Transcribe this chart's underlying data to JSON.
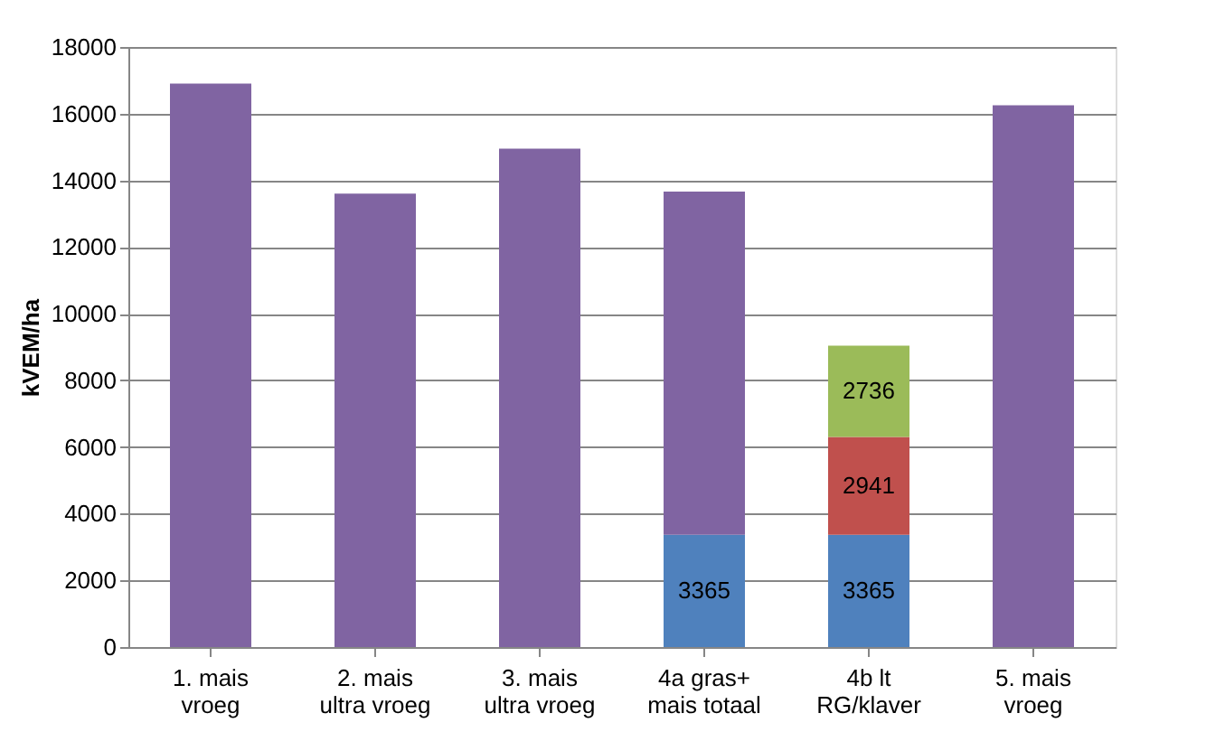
{
  "chart_data": {
    "type": "bar",
    "stacked": true,
    "ylabel": "kVEM/ha",
    "categories": [
      "1. mais\nvroeg",
      "2. mais\nultra vroeg",
      "3. mais\nultra vroeg",
      "4a gras+\nmais totaal",
      "4b lt\nRG/klaver",
      "5. mais\nvroeg"
    ],
    "series": [
      {
        "color": "#4f81bd",
        "values": [
          null,
          null,
          null,
          3365,
          3365,
          null
        ],
        "value_labels": [
          null,
          null,
          null,
          "3365",
          "3365",
          null
        ]
      },
      {
        "color": "#c0504d",
        "values": [
          null,
          null,
          null,
          null,
          2941,
          null
        ],
        "value_labels": [
          null,
          null,
          null,
          null,
          "2941",
          null
        ]
      },
      {
        "color": "#9bbb59",
        "values": [
          null,
          null,
          null,
          null,
          2736,
          null
        ],
        "value_labels": [
          null,
          null,
          null,
          null,
          "2736",
          null
        ]
      },
      {
        "color": "#8064a2",
        "values": [
          16900,
          13600,
          14950,
          10300,
          null,
          16250
        ]
      }
    ],
    "ylim": [
      0,
      18000
    ],
    "yticks": [
      0,
      2000,
      4000,
      6000,
      8000,
      10000,
      12000,
      14000,
      16000,
      18000
    ],
    "grid": "y"
  }
}
